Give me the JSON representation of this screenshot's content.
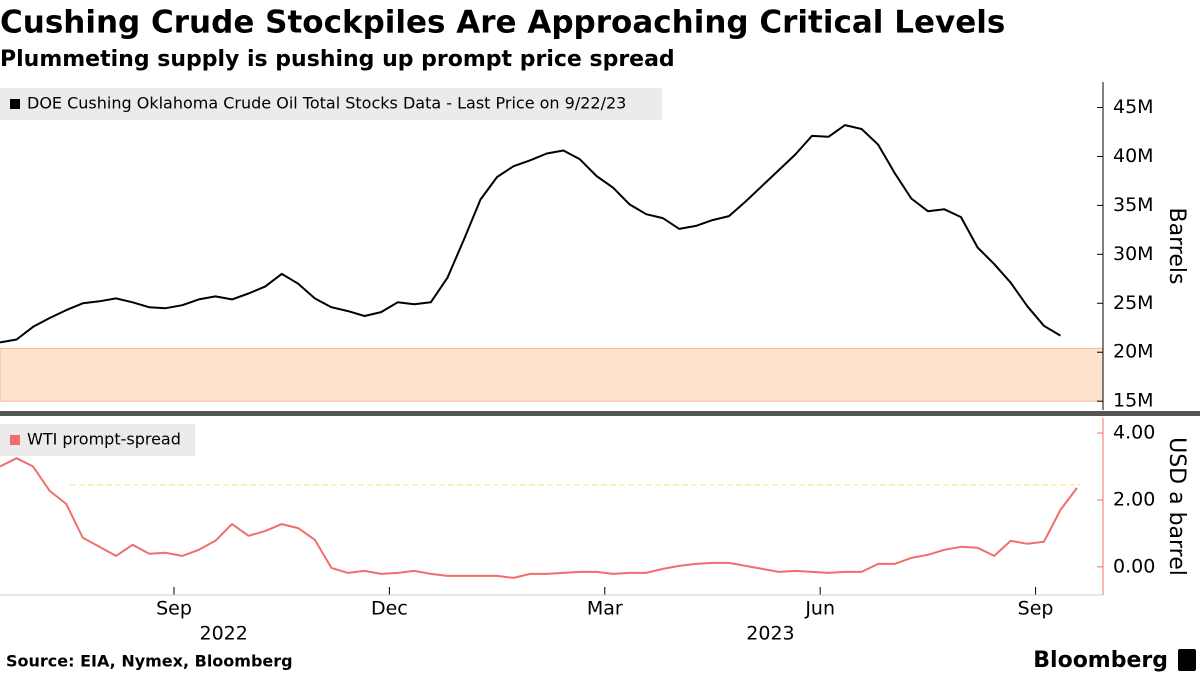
{
  "title": "Cushing Crude Stockpiles Are Approaching Critical Levels",
  "subtitle": "Plummeting supply is pushing up prompt price spread",
  "source": "Source: EIA, Nymex, Bloomberg",
  "brand": "Bloomberg",
  "chart_data": [
    {
      "type": "line",
      "x": [
        "2022-06",
        "2022-06",
        "2022-07",
        "2022-07",
        "2022-07",
        "2022-07",
        "2022-07",
        "2022-08",
        "2022-08",
        "2022-08",
        "2022-08",
        "2022-09",
        "2022-09",
        "2022-09",
        "2022-09",
        "2022-09",
        "2022-10",
        "2022-10",
        "2022-10",
        "2022-10",
        "2022-11",
        "2022-11",
        "2022-11",
        "2022-11",
        "2022-12",
        "2022-12",
        "2022-12",
        "2022-12",
        "2022-12",
        "2023-01",
        "2023-01",
        "2023-01",
        "2023-01",
        "2023-02",
        "2023-02",
        "2023-02",
        "2023-02",
        "2023-03",
        "2023-03",
        "2023-03",
        "2023-03",
        "2023-03",
        "2023-04",
        "2023-04",
        "2023-04",
        "2023-04",
        "2023-05",
        "2023-05",
        "2023-05",
        "2023-05",
        "2023-06",
        "2023-06",
        "2023-06",
        "2023-06",
        "2023-06",
        "2023-07",
        "2023-07",
        "2023-07",
        "2023-07",
        "2023-08",
        "2023-08",
        "2023-08",
        "2023-08",
        "2023-09",
        "2023-09"
      ],
      "series": [
        {
          "name": "DOE Cushing Oklahoma Crude Oil Total Stocks Data - Last Price on 9/22/23",
          "color": "#000000",
          "values": [
            21.0,
            21.3,
            22.6,
            23.5,
            24.3,
            25.0,
            25.2,
            25.5,
            25.1,
            24.6,
            24.5,
            24.8,
            25.4,
            25.7,
            25.4,
            26.0,
            26.7,
            28.0,
            27.0,
            25.5,
            24.6,
            24.2,
            23.7,
            24.1,
            25.1,
            24.9,
            25.1,
            27.6,
            31.5,
            35.6,
            37.9,
            39.0,
            39.6,
            40.3,
            40.6,
            39.7,
            38.0,
            36.8,
            35.1,
            34.1,
            33.7,
            32.6,
            32.9,
            33.5,
            33.9,
            35.4,
            37.0,
            38.6,
            40.2,
            42.1,
            42.0,
            43.2,
            42.8,
            41.2,
            38.3,
            35.7,
            34.4,
            34.6,
            33.8,
            30.7,
            29.0,
            27.1,
            24.7,
            22.7,
            21.7
          ]
        }
      ],
      "y_label": "Barrels",
      "ylim": [
        14.1,
        47.6
      ],
      "yticks": [
        {
          "value": 15,
          "label": "15M"
        },
        {
          "value": 20,
          "label": "20M"
        },
        {
          "value": 25,
          "label": "25M"
        },
        {
          "value": 30,
          "label": "30M"
        },
        {
          "value": 35,
          "label": "35M"
        },
        {
          "value": 40,
          "label": "40M"
        },
        {
          "value": 45,
          "label": "45M"
        }
      ],
      "band": [
        15,
        20.4
      ],
      "band_color": "#ffe3cf"
    },
    {
      "type": "line",
      "x": [
        "2022-06",
        "2022-06",
        "2022-07",
        "2022-07",
        "2022-07",
        "2022-07",
        "2022-07",
        "2022-08",
        "2022-08",
        "2022-08",
        "2022-08",
        "2022-09",
        "2022-09",
        "2022-09",
        "2022-09",
        "2022-09",
        "2022-10",
        "2022-10",
        "2022-10",
        "2022-10",
        "2022-11",
        "2022-11",
        "2022-11",
        "2022-11",
        "2022-12",
        "2022-12",
        "2022-12",
        "2022-12",
        "2022-12",
        "2023-01",
        "2023-01",
        "2023-01",
        "2023-01",
        "2023-02",
        "2023-02",
        "2023-02",
        "2023-02",
        "2023-03",
        "2023-03",
        "2023-03",
        "2023-03",
        "2023-03",
        "2023-04",
        "2023-04",
        "2023-04",
        "2023-04",
        "2023-05",
        "2023-05",
        "2023-05",
        "2023-05",
        "2023-06",
        "2023-06",
        "2023-06",
        "2023-06",
        "2023-06",
        "2023-07",
        "2023-07",
        "2023-07",
        "2023-07",
        "2023-08",
        "2023-08",
        "2023-08",
        "2023-08",
        "2023-09",
        "2023-09",
        "2023-09"
      ],
      "series": [
        {
          "name": "WTI prompt-spread",
          "color": "#f26d6d",
          "values": [
            3.0,
            3.25,
            3.0,
            2.27,
            1.88,
            0.87,
            0.6,
            0.33,
            0.66,
            0.39,
            0.42,
            0.33,
            0.51,
            0.78,
            1.28,
            0.93,
            1.07,
            1.28,
            1.16,
            0.81,
            -0.03,
            -0.18,
            -0.12,
            -0.21,
            -0.18,
            -0.12,
            -0.21,
            -0.27,
            -0.27,
            -0.27,
            -0.27,
            -0.33,
            -0.21,
            -0.21,
            -0.18,
            -0.15,
            -0.15,
            -0.21,
            -0.18,
            -0.18,
            -0.06,
            0.03,
            0.09,
            0.12,
            0.12,
            0.03,
            -0.06,
            -0.15,
            -0.12,
            -0.15,
            -0.18,
            -0.15,
            -0.15,
            0.09,
            0.09,
            0.27,
            0.36,
            0.51,
            0.6,
            0.57,
            0.33,
            0.78,
            0.69,
            0.75,
            1.7,
            2.36
          ]
        }
      ],
      "y_label": "USD a barrel",
      "ylim": [
        -0.84,
        4.45
      ],
      "yticks": [
        {
          "value": 0,
          "label": "0.00"
        },
        {
          "value": 2,
          "label": "2.00"
        },
        {
          "value": 4,
          "label": "4.00"
        }
      ],
      "reference_line": 2.45,
      "reference_color": "#f3f0a8",
      "xticks": [
        {
          "value": "2022-09",
          "label": "Sep"
        },
        {
          "value": "2022-12",
          "label": "Dec"
        },
        {
          "value": "2023-03",
          "label": "Mar"
        },
        {
          "value": "2023-06",
          "label": "Jun"
        },
        {
          "value": "2023-09",
          "label": "Sep"
        }
      ],
      "years": [
        "2022",
        "2023"
      ]
    }
  ]
}
